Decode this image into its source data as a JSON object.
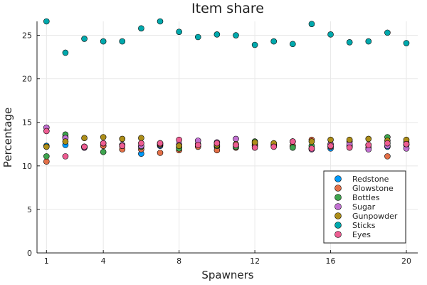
{
  "chart_data": {
    "type": "scatter",
    "title": "Item share",
    "xlabel": "Spawners",
    "ylabel": "Percentage",
    "xlim": [
      0.5,
      20.6
    ],
    "ylim": [
      0,
      26.6
    ],
    "xticks": [
      1,
      4,
      8,
      12,
      16,
      20
    ],
    "yticks": [
      0,
      5,
      10,
      15,
      20,
      25
    ],
    "grid": true,
    "legend_position": "bottom-right",
    "x": [
      1,
      2,
      3,
      4,
      5,
      6,
      7,
      8,
      9,
      10,
      11,
      12,
      13,
      14,
      15,
      16,
      17,
      18,
      19,
      20
    ],
    "series": [
      {
        "name": "Redstone",
        "color": "#009AFA",
        "values": [
          12.3,
          12.4,
          12.2,
          12.3,
          12.4,
          11.4,
          12.3,
          12.2,
          12.3,
          12.2,
          12.4,
          12.4,
          12.3,
          12.3,
          12.0,
          12.0,
          12.3,
          12.4,
          12.2,
          12.4
        ]
      },
      {
        "name": "Glowstone",
        "color": "#E36F47",
        "values": [
          10.5,
          13.3,
          12.1,
          12.3,
          11.9,
          11.9,
          11.5,
          11.8,
          12.2,
          11.8,
          12.1,
          12.3,
          12.4,
          12.3,
          13.0,
          12.2,
          12.8,
          12.1,
          11.1,
          12.5
        ]
      },
      {
        "name": "Bottles",
        "color": "#3EA44E",
        "values": [
          11.1,
          13.6,
          12.2,
          11.6,
          12.3,
          12.2,
          12.6,
          12.0,
          12.5,
          12.3,
          12.2,
          12.8,
          12.4,
          12.1,
          12.3,
          12.5,
          12.2,
          12.4,
          13.3,
          12.7
        ]
      },
      {
        "name": "Sugar",
        "color": "#C271D2",
        "values": [
          14.4,
          13.2,
          12.1,
          12.6,
          12.4,
          12.3,
          12.4,
          12.5,
          12.9,
          12.7,
          13.1,
          12.6,
          12.5,
          12.8,
          11.9,
          12.5,
          12.5,
          11.9,
          12.3,
          12.0
        ]
      },
      {
        "name": "Gunpowder",
        "color": "#AC8D18",
        "values": [
          12.2,
          12.8,
          13.2,
          13.3,
          13.1,
          13.2,
          12.5,
          12.3,
          12.4,
          12.4,
          12.5,
          12.7,
          12.6,
          12.8,
          12.8,
          13.0,
          13.0,
          13.1,
          12.9,
          13.0
        ]
      },
      {
        "name": "Sticks",
        "color": "#00A9AD",
        "values": [
          26.6,
          23.0,
          24.6,
          24.3,
          24.3,
          25.8,
          26.6,
          25.4,
          24.8,
          25.1,
          25.0,
          23.9,
          24.3,
          24.0,
          26.3,
          25.1,
          24.2,
          24.3,
          25.3,
          24.1
        ]
      },
      {
        "name": "Eyes",
        "color": "#ED5D92",
        "values": [
          14.0,
          11.1,
          12.2,
          12.6,
          12.3,
          12.6,
          12.6,
          13.0,
          12.4,
          12.6,
          12.4,
          12.1,
          12.2,
          12.8,
          12.0,
          12.3,
          12.1,
          12.4,
          12.6,
          12.5
        ]
      }
    ]
  }
}
